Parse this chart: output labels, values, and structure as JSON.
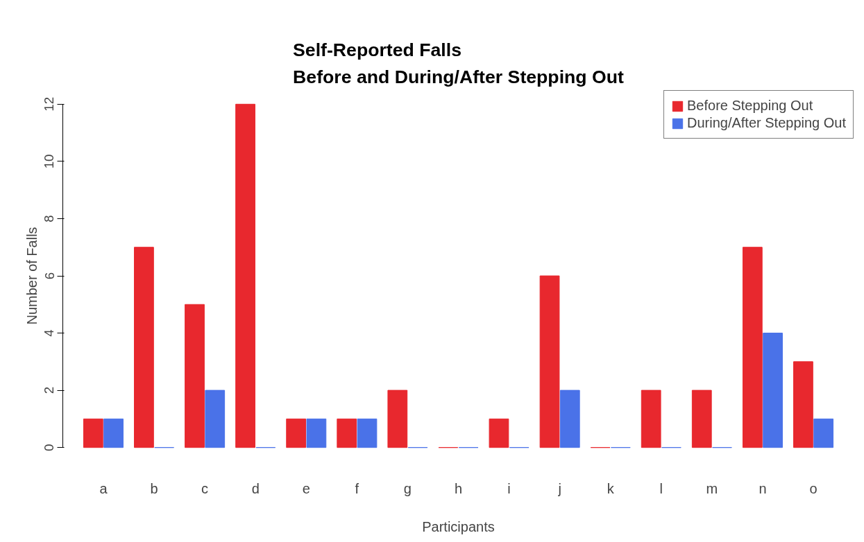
{
  "chart_data": {
    "type": "bar",
    "title": "Self-Reported Falls\nBefore and During/After Stepping Out",
    "xlabel": "Participants",
    "ylabel": "Number of Falls",
    "categories": [
      "a",
      "b",
      "c",
      "d",
      "e",
      "f",
      "g",
      "h",
      "i",
      "j",
      "k",
      "l",
      "m",
      "n",
      "o"
    ],
    "series": [
      {
        "name": "Before Stepping Out",
        "color": "#e8282e",
        "values": [
          1,
          7,
          5,
          12,
          1,
          1,
          2,
          0,
          1,
          6,
          0,
          2,
          2,
          7,
          3
        ]
      },
      {
        "name": "During/After Stepping Out",
        "color": "#4a72e8",
        "values": [
          1,
          0,
          2,
          0,
          1,
          1,
          0,
          0,
          0,
          2,
          0,
          0,
          0,
          4,
          1
        ]
      }
    ],
    "ylim": [
      0,
      12
    ],
    "yticks": [
      0,
      2,
      4,
      6,
      8,
      10,
      12
    ],
    "grid": false,
    "legend": "top right"
  }
}
